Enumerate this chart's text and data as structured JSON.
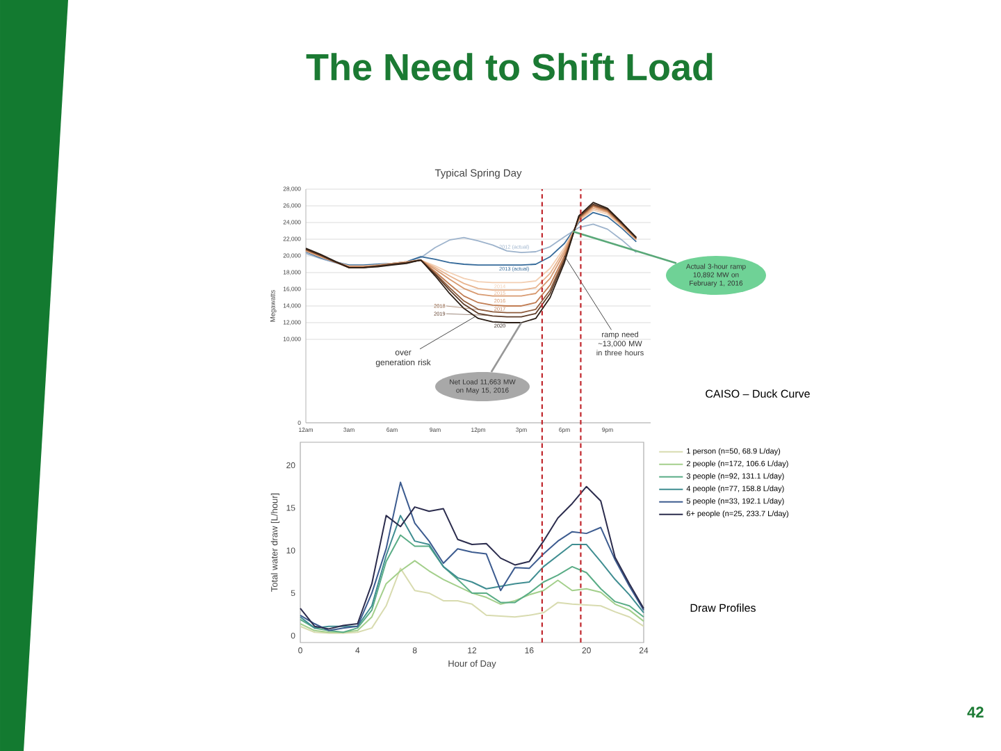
{
  "chart_data": [
    {
      "type": "line",
      "title": "Typical Spring Day",
      "ylabel": "Megawatts",
      "categories": [
        "12am",
        null,
        null,
        "3am",
        null,
        null,
        "6am",
        null,
        null,
        "9am",
        null,
        null,
        "12pm",
        null,
        null,
        "3pm",
        null,
        null,
        "6pm",
        null,
        null,
        "9pm",
        null,
        null
      ],
      "ylim": [
        0,
        28000
      ],
      "yticks": [
        0,
        {
          "value": 10000,
          "label": "10,000"
        },
        {
          "value": 12000,
          "label": "12,000"
        },
        {
          "value": 14000,
          "label": "14,000"
        },
        {
          "value": 16000,
          "label": "16,000"
        },
        {
          "value": 18000,
          "label": "18,000"
        },
        {
          "value": 20000,
          "label": "20,000"
        },
        {
          "value": 22000,
          "label": "22,000"
        },
        {
          "value": 24000,
          "label": "24,000"
        },
        {
          "value": 26000,
          "label": "26,000"
        },
        {
          "value": 28000,
          "label": "28,000"
        }
      ],
      "grid": "y",
      "series": [
        {
          "name": "2012 (actual)",
          "color": "#9db3cc",
          "values": [
            20300,
            19700,
            19200,
            18800,
            18800,
            19000,
            19100,
            19300,
            19800,
            21000,
            21900,
            22200,
            21800,
            21300,
            20600,
            20400,
            20500,
            21100,
            22300,
            23400,
            23800,
            23200,
            21900,
            20400
          ]
        },
        {
          "name": "2013 (actual)",
          "color": "#356a9a",
          "values": [
            20500,
            19800,
            19300,
            18900,
            18900,
            19000,
            19100,
            19300,
            19900,
            19600,
            19200,
            19000,
            18900,
            18900,
            18900,
            18900,
            19000,
            19900,
            21500,
            24000,
            25200,
            24700,
            23300,
            21700
          ]
        },
        {
          "name": "2014",
          "color": "#f3cfb3",
          "values": [
            20600,
            19900,
            19300,
            18800,
            18800,
            18900,
            19100,
            19300,
            19500,
            18800,
            18000,
            17300,
            16900,
            16800,
            16800,
            16800,
            17000,
            18500,
            21000,
            24200,
            25500,
            25000,
            23500,
            21900
          ]
        },
        {
          "name": "2015",
          "color": "#e8b48f",
          "values": [
            20600,
            19900,
            19300,
            18700,
            18700,
            18900,
            19100,
            19300,
            19500,
            18600,
            17600,
            16700,
            16100,
            15900,
            15900,
            15900,
            16200,
            17900,
            20700,
            24300,
            25700,
            25200,
            23600,
            22000
          ]
        },
        {
          "name": "2016",
          "color": "#d89a70",
          "values": [
            20700,
            20000,
            19300,
            18700,
            18700,
            18800,
            19000,
            19200,
            19500,
            18400,
            17200,
            16100,
            15400,
            15200,
            15200,
            15200,
            15500,
            17300,
            20400,
            24400,
            25900,
            25300,
            23700,
            22000
          ]
        },
        {
          "name": "2017",
          "color": "#c17c52",
          "values": [
            20700,
            20000,
            19300,
            18700,
            18700,
            18800,
            19000,
            19200,
            19500,
            18100,
            16600,
            15200,
            14400,
            14100,
            14000,
            14000,
            14400,
            16500,
            20000,
            24500,
            26000,
            25400,
            23800,
            22100
          ]
        },
        {
          "name": "2018",
          "color": "#8e5b3b",
          "values": [
            20800,
            20100,
            19300,
            18600,
            18600,
            18800,
            19000,
            19200,
            19500,
            17900,
            16200,
            14600,
            13600,
            13300,
            13200,
            13200,
            13600,
            15900,
            19700,
            24600,
            26100,
            25500,
            23800,
            22100
          ]
        },
        {
          "name": "2019",
          "color": "#5d3b27",
          "values": [
            20800,
            20100,
            19300,
            18600,
            18600,
            18800,
            19000,
            19200,
            19500,
            17800,
            15900,
            14200,
            13100,
            12800,
            12700,
            12700,
            13100,
            15500,
            19500,
            24700,
            26200,
            25600,
            23900,
            22200
          ]
        },
        {
          "name": "2020",
          "color": "#2a1d15",
          "values": [
            20900,
            20200,
            19400,
            18600,
            18600,
            18700,
            18900,
            19100,
            19500,
            17600,
            15500,
            13700,
            12500,
            12100,
            12000,
            12000,
            12500,
            15000,
            19200,
            24800,
            26400,
            25700,
            24000,
            22200
          ]
        }
      ],
      "annotations": [
        "The Need to Shift Load",
        "over generation risk",
        {
          "text": "ramp need ~13,000 MW in three hours",
          "x": "6pm",
          "y": 20000
        },
        "Actual 3-hour ramp 10,892 MW on February 1, 2016",
        {
          "text": "Net Load 11,663 MW on May 15, 2016",
          "x": "3pm",
          "y": 12000
        },
        "CAISO – Duck Curve"
      ]
    },
    {
      "type": "line",
      "xlabel": "Hour of Day",
      "ylabel": "Total water draw [L/hour]",
      "x": [
        0,
        1,
        2,
        3,
        4,
        5,
        6,
        7,
        8,
        9,
        10,
        11,
        12,
        13,
        14,
        15,
        16,
        17,
        18,
        19,
        20,
        21,
        22,
        23,
        24
      ],
      "xlim": [
        0,
        24
      ],
      "ylim": [
        -0.8,
        22.7
      ],
      "xticks": [
        0,
        4,
        8,
        12,
        16,
        20,
        24
      ],
      "yticks": [
        0,
        5,
        10,
        15,
        20
      ],
      "legend": "right",
      "series": [
        {
          "name": "1 person (n=50, 68.9 L/day)",
          "color": "#d8dbaf",
          "values": [
            1.1,
            0.4,
            0.3,
            0.3,
            0.4,
            0.9,
            3.5,
            7.9,
            5.3,
            5.0,
            4.1,
            4.1,
            3.7,
            2.4,
            2.3,
            2.2,
            2.4,
            2.7,
            3.9,
            3.7,
            3.6,
            3.5,
            2.8,
            2.2,
            1.1
          ]
        },
        {
          "name": "2 people (n=172, 106.6 L/day)",
          "color": "#a3cf8b",
          "values": [
            1.4,
            0.6,
            0.4,
            0.4,
            0.6,
            2.2,
            6.1,
            7.6,
            8.8,
            7.6,
            6.6,
            5.8,
            5.0,
            4.5,
            3.7,
            4.1,
            4.8,
            5.3,
            6.5,
            5.3,
            5.5,
            5.1,
            3.7,
            3.0,
            1.7
          ]
        },
        {
          "name": "3 people (n=92, 131.1 L/day)",
          "color": "#5aad86",
          "values": [
            1.9,
            0.9,
            0.6,
            0.4,
            0.9,
            3.0,
            8.7,
            11.8,
            10.5,
            10.5,
            8.1,
            6.6,
            5.0,
            5.0,
            3.9,
            3.9,
            5.0,
            6.3,
            7.1,
            8.1,
            7.4,
            5.5,
            4.0,
            3.5,
            2.2
          ]
        },
        {
          "name": "4 people (n=77, 158.8 L/day)",
          "color": "#3f8d91",
          "values": [
            2.2,
            0.9,
            1.1,
            1.1,
            1.1,
            3.5,
            9.4,
            14.1,
            11.1,
            10.7,
            8.1,
            6.8,
            6.3,
            5.5,
            5.8,
            6.1,
            6.3,
            8.1,
            9.4,
            10.7,
            10.7,
            8.7,
            6.6,
            4.8,
            2.7
          ]
        },
        {
          "name": "5 people (n=33, 192.1 L/day)",
          "color": "#3c5b8f",
          "values": [
            2.4,
            1.4,
            0.6,
            0.9,
            1.1,
            5.0,
            10.2,
            18.0,
            13.2,
            11.1,
            8.5,
            10.2,
            9.8,
            9.6,
            5.3,
            8.0,
            7.9,
            9.6,
            11.1,
            12.2,
            12.0,
            12.7,
            8.9,
            5.8,
            3.0
          ]
        },
        {
          "name": "6+ people (n=25, 233.7 L/day)",
          "color": "#2b2c4d",
          "values": [
            3.2,
            1.1,
            0.8,
            1.2,
            1.4,
            6.1,
            14.1,
            12.8,
            15.1,
            14.6,
            14.9,
            11.3,
            10.7,
            10.8,
            9.1,
            8.3,
            8.7,
            11.1,
            13.8,
            15.5,
            17.5,
            15.8,
            9.2,
            6.1,
            3.2
          ]
        }
      ],
      "ref_lines": [
        {
          "axis": "x",
          "value": 16.9,
          "color": "#c1272d",
          "line_style": "dashed"
        },
        {
          "axis": "x",
          "value": 19.6,
          "color": "#c1272d",
          "line_style": "dashed"
        }
      ],
      "annotations": [
        "Draw Profiles",
        "42"
      ]
    }
  ]
}
